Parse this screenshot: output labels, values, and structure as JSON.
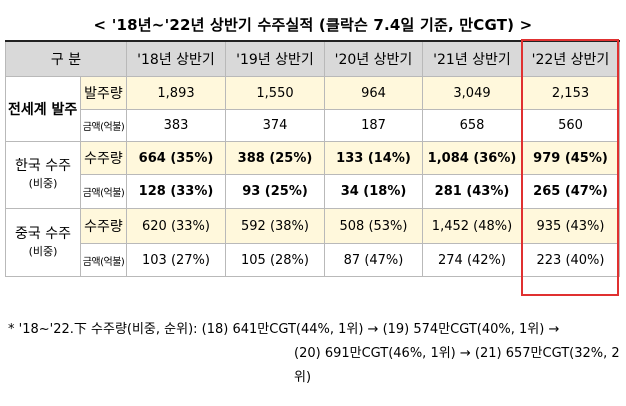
{
  "title": "< '18년~'22년 상반기 수주실적 (클락슨 7.4일 기준, 만CGT) >",
  "table": {
    "header": [
      "구 분",
      "'18년 상반기",
      "'19년 상반기",
      "'20년 상반기",
      "'21년 상반기",
      "'22년 상반기"
    ],
    "groups": [
      {
        "label": "전세계 발주",
        "sub": "",
        "rows": [
          {
            "metric": "발주량",
            "values": [
              "1,893",
              "1,550",
              "964",
              "3,049",
              "2,153"
            ]
          },
          {
            "metric": "금액(억불)",
            "values": [
              "383",
              "374",
              "187",
              "658",
              "560"
            ]
          }
        ]
      },
      {
        "label": "한국 수주",
        "sub": "(비중)",
        "rows": [
          {
            "metric": "수주량",
            "values": [
              "664 (35%)",
              "388 (25%)",
              "133 (14%)",
              "1,084 (36%)",
              "979 (45%)"
            ]
          },
          {
            "metric": "금액(억불)",
            "values": [
              "128 (33%)",
              "93 (25%)",
              "34 (18%)",
              "281 (43%)",
              "265 (47%)"
            ]
          }
        ]
      },
      {
        "label": "중국 수주",
        "sub": "(비중)",
        "rows": [
          {
            "metric": "수주량",
            "values": [
              "620 (33%)",
              "592 (38%)",
              "508 (53%)",
              "1,452 (48%)",
              "935 (43%)"
            ]
          },
          {
            "metric": "금액(억불)",
            "values": [
              "103 (27%)",
              "105 (28%)",
              "87 (47%)",
              "274 (42%)",
              "223 (40%)"
            ]
          }
        ]
      }
    ]
  },
  "notes": {
    "line1": "*  '18~'22.下 수주량(비중, 순위): (18) 641만CGT(44%, 1위) → (19) 574만CGT(40%, 1위)   →",
    "line2": "(20) 691만CGT(46%, 1위) → (21) 657만CGT(32%, 2위)"
  },
  "colors": {
    "highlight_border": "#e03030",
    "header_bg": "#d9d9d9",
    "cell_bg": "#fff8dc"
  }
}
